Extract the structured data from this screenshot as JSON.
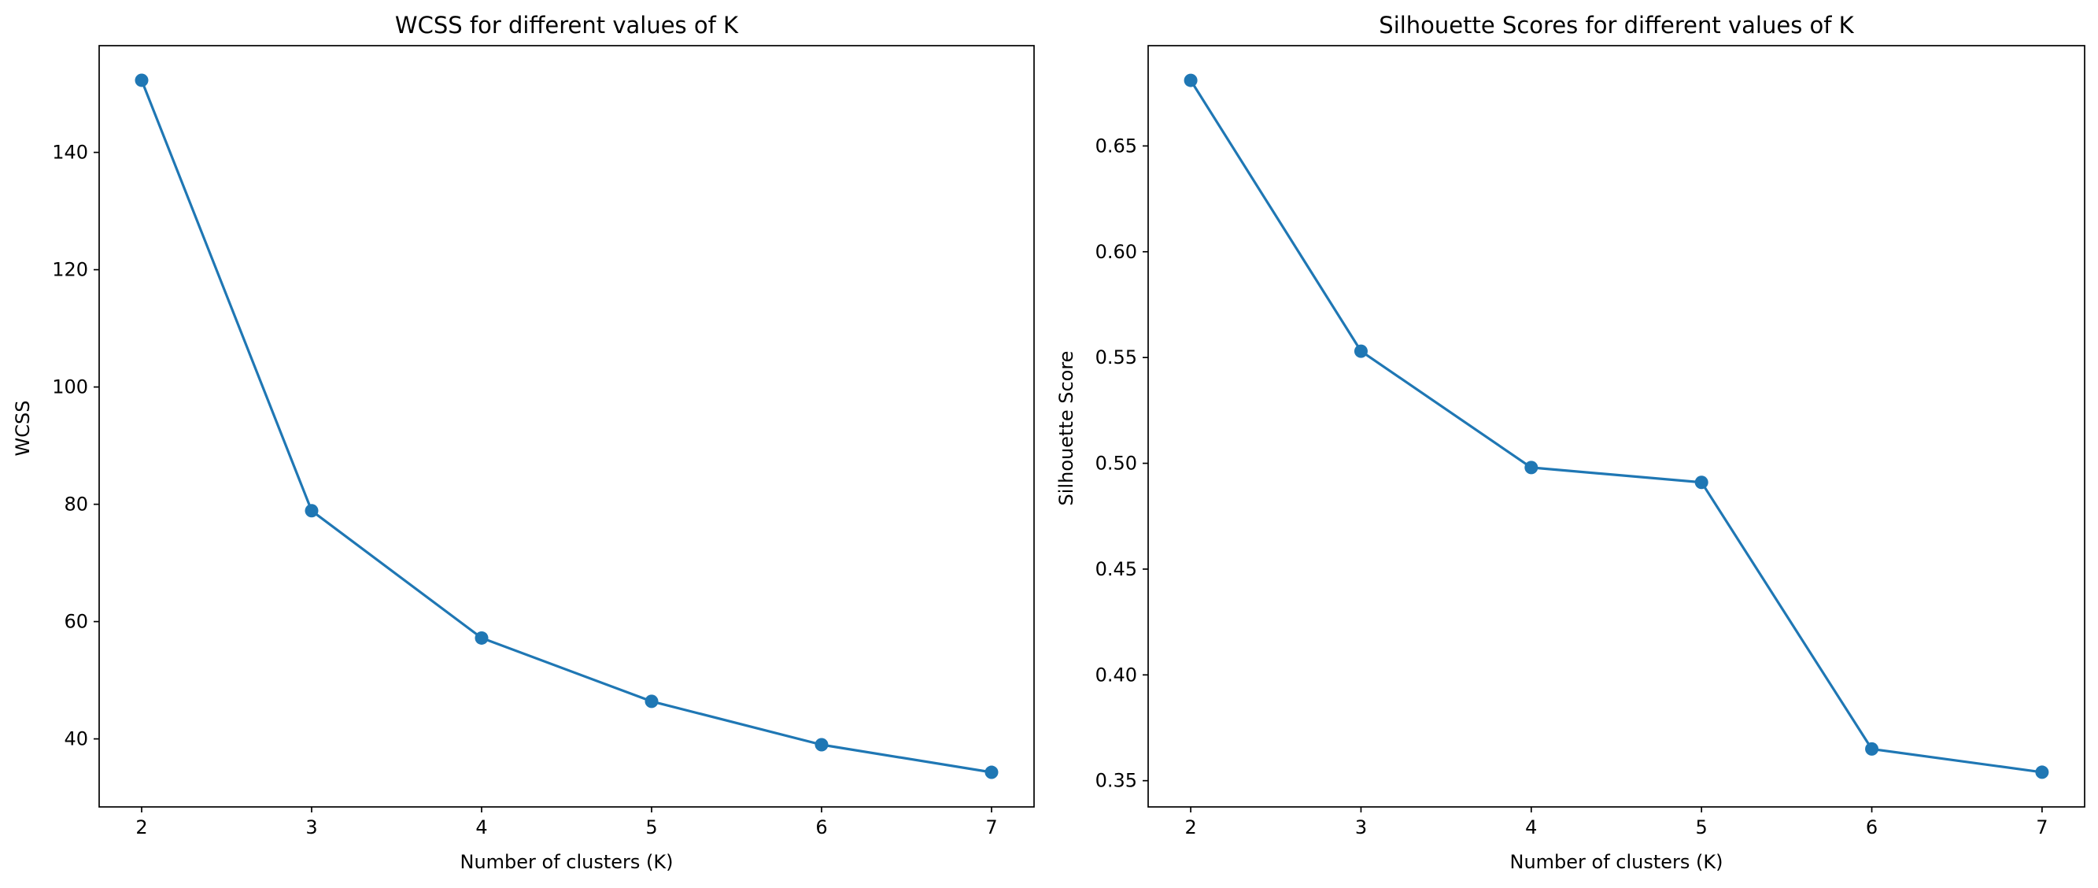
{
  "chart_data": [
    {
      "type": "line",
      "title": "WCSS for different values of K",
      "xlabel": "Number of clusters (K)",
      "ylabel": "WCSS",
      "x": [
        2,
        3,
        4,
        5,
        6,
        7
      ],
      "series": [
        {
          "values": [
            152.3,
            78.9,
            57.2,
            46.4,
            39.0,
            34.3
          ],
          "color": "#1f77b4"
        }
      ],
      "xlim": [
        1.75,
        7.25
      ],
      "ylim": [
        28.4,
        158.2
      ],
      "xticks": [
        2,
        3,
        4,
        5,
        6,
        7
      ],
      "yticks": [
        40,
        60,
        80,
        100,
        120,
        140
      ],
      "ytick_labels": [
        "40",
        "60",
        "80",
        "100",
        "120",
        "140"
      ],
      "marker": "circle",
      "grid": false,
      "legend": "none"
    },
    {
      "type": "line",
      "title": "Silhouette Scores for different values of K",
      "xlabel": "Number of clusters (K)",
      "ylabel": "Silhouette Score",
      "x": [
        2,
        3,
        4,
        5,
        6,
        7
      ],
      "series": [
        {
          "values": [
            0.681,
            0.553,
            0.498,
            0.491,
            0.365,
            0.354
          ],
          "color": "#1f77b4"
        }
      ],
      "xlim": [
        1.75,
        7.25
      ],
      "ylim": [
        0.3376,
        0.6974
      ],
      "xticks": [
        2,
        3,
        4,
        5,
        6,
        7
      ],
      "yticks": [
        0.35,
        0.4,
        0.45,
        0.5,
        0.55,
        0.6,
        0.65
      ],
      "ytick_labels": [
        "0.35",
        "0.40",
        "0.45",
        "0.50",
        "0.55",
        "0.60",
        "0.65"
      ],
      "marker": "circle",
      "grid": false,
      "legend": "none"
    }
  ]
}
